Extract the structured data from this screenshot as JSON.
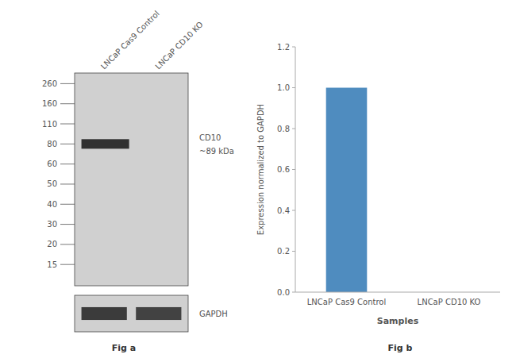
{
  "chart_data": [
    {
      "type": "western_blot",
      "title": "Fig a",
      "lanes": [
        "LNCaP Cas9 Control",
        "LNCaP CD10 KO"
      ],
      "ladder": [
        260,
        160,
        110,
        80,
        60,
        50,
        40,
        30,
        20,
        15
      ],
      "annotations": [
        "CD10",
        "~89 kDa",
        "GAPDH"
      ]
    },
    {
      "type": "bar",
      "title": "Fig b",
      "categories": [
        "LNCaP Cas9 Control",
        "LNCaP CD10 KO"
      ],
      "values": [
        1.0,
        0.0
      ],
      "color": "#4f8cbf",
      "xlabel": "Samples",
      "ylabel": "Expression normalized to GAPDH",
      "ylim": [
        0,
        1.2
      ],
      "yticks": [
        {
          "value": 0,
          "label": "0.0"
        },
        0.2,
        0.4,
        0.6,
        0.8,
        {
          "value": 1.0,
          "label": "1.0"
        },
        1.2
      ]
    }
  ]
}
